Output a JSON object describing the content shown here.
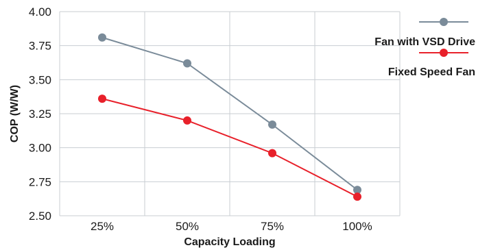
{
  "chart_data": {
    "type": "line",
    "categories": [
      "25%",
      "50%",
      "75%",
      "100%"
    ],
    "series": [
      {
        "name": "Fan with VSD Drive",
        "values": [
          3.81,
          3.62,
          3.17,
          2.69
        ],
        "color": "#7a8b99"
      },
      {
        "name": "Fixed Speed Fan",
        "values": [
          3.36,
          3.2,
          2.96,
          2.64
        ],
        "color": "#e8202a"
      }
    ],
    "xlabel": "Capacity Loading",
    "ylabel": "COP (W/W)",
    "ylim": [
      2.5,
      4.0
    ],
    "yticks": [
      "2.50",
      "2.75",
      "3.00",
      "3.25",
      "3.50",
      "3.75",
      "4.00"
    ],
    "grid": true,
    "legend_position": "top-right"
  }
}
